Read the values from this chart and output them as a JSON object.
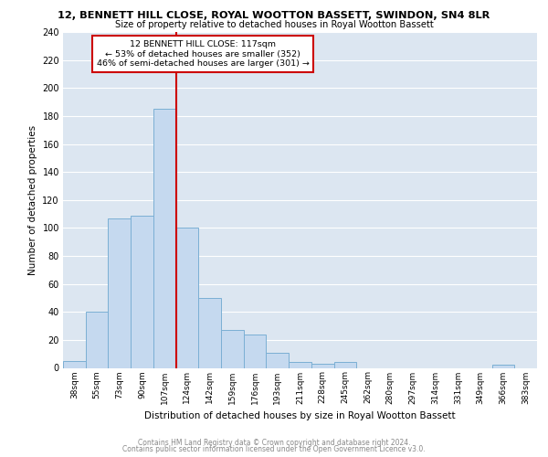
{
  "title1": "12, BENNETT HILL CLOSE, ROYAL WOOTTON BASSETT, SWINDON, SN4 8LR",
  "title2": "Size of property relative to detached houses in Royal Wootton Bassett",
  "xlabel": "Distribution of detached houses by size in Royal Wootton Bassett",
  "ylabel": "Number of detached properties",
  "categories": [
    "38sqm",
    "55sqm",
    "73sqm",
    "90sqm",
    "107sqm",
    "124sqm",
    "142sqm",
    "159sqm",
    "176sqm",
    "193sqm",
    "211sqm",
    "228sqm",
    "245sqm",
    "262sqm",
    "280sqm",
    "297sqm",
    "314sqm",
    "331sqm",
    "349sqm",
    "366sqm",
    "383sqm"
  ],
  "values": [
    5,
    40,
    107,
    109,
    185,
    100,
    50,
    27,
    24,
    11,
    4,
    3,
    4,
    0,
    0,
    0,
    0,
    0,
    0,
    2,
    0
  ],
  "bar_color": "#c5d9ef",
  "bar_edge_color": "#7bafd4",
  "annotation_title": "12 BENNETT HILL CLOSE: 117sqm",
  "annotation_line1": "← 53% of detached houses are smaller (352)",
  "annotation_line2": "46% of semi-detached houses are larger (301) →",
  "annotation_box_color": "#ffffff",
  "annotation_box_edge": "#cc0000",
  "vline_color": "#cc0000",
  "vline_x_index": 5,
  "ylim": [
    0,
    240
  ],
  "yticks": [
    0,
    20,
    40,
    60,
    80,
    100,
    120,
    140,
    160,
    180,
    200,
    220,
    240
  ],
  "grid_color": "#ffffff",
  "bg_color": "#dce6f1",
  "footer1": "Contains HM Land Registry data © Crown copyright and database right 2024.",
  "footer2": "Contains public sector information licensed under the Open Government Licence v3.0."
}
